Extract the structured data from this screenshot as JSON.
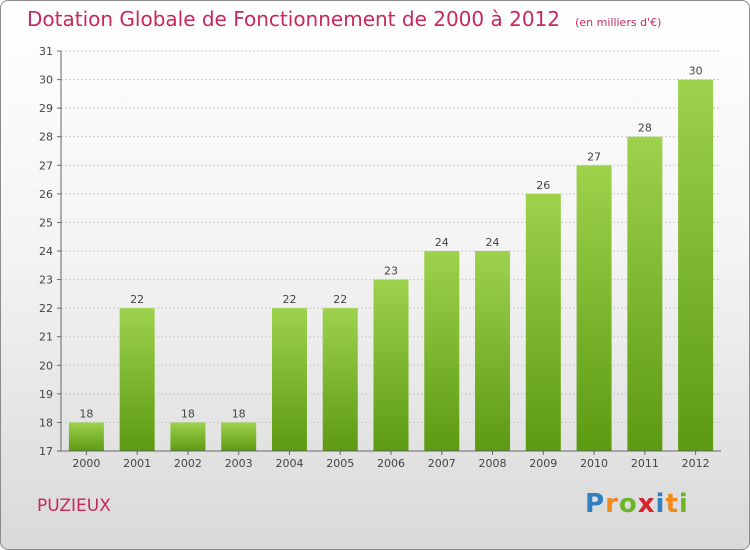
{
  "title": "Dotation Globale de Fonctionnement de 2000 à 2012",
  "unit": "(en milliers d'€)",
  "place": "PUZIEUX",
  "logo": "Proxiti",
  "colors": {
    "bar_light": "#9ed24c",
    "bar_dark": "#5c9a12",
    "title": "#c8285a",
    "grid": "#c9c9c9"
  },
  "chart_data": {
    "type": "bar",
    "title": "Dotation Globale de Fonctionnement de 2000 à 2012",
    "categories": [
      "2000",
      "2001",
      "2002",
      "2003",
      "2004",
      "2005",
      "2006",
      "2007",
      "2008",
      "2009",
      "2010",
      "2011",
      "2012"
    ],
    "values": [
      18,
      22,
      18,
      18,
      22,
      22,
      23,
      24,
      24,
      26,
      27,
      28,
      30
    ],
    "ylim": [
      17,
      31
    ],
    "yticks": [
      17,
      18,
      19,
      20,
      21,
      22,
      23,
      24,
      25,
      26,
      27,
      28,
      29,
      30,
      31
    ],
    "grid": true,
    "xlabel": "",
    "ylabel": ""
  }
}
